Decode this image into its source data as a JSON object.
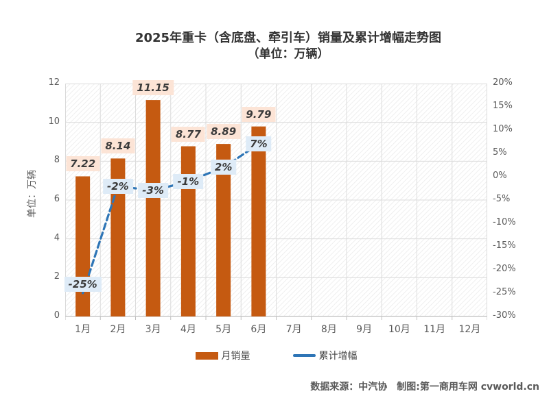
{
  "title": {
    "line1": "2025年重卡（含底盘、牵引车）销量及累计增幅走势图",
    "line2": "（单位：万辆）"
  },
  "y_axis": {
    "label": "单位：万辆",
    "ticks": [
      12,
      10,
      8,
      6,
      4,
      2,
      0
    ],
    "min": 0,
    "max": 12
  },
  "y2_axis": {
    "ticks": [
      "20%",
      "15%",
      "10%",
      "5%",
      "0%",
      "-5%",
      "-10%",
      "-15%",
      "-20%",
      "-25%",
      "-30%"
    ],
    "min": -30,
    "max": 20
  },
  "chart_data": {
    "type": "bar+line-combo",
    "title": "2025年重卡（含底盘、牵引车）销量及累计增幅走势图（单位：万辆）",
    "categories": [
      "1月",
      "2月",
      "3月",
      "4月",
      "5月",
      "6月",
      "7月",
      "8月",
      "9月",
      "10月",
      "11月",
      "12月"
    ],
    "series": [
      {
        "name": "月销量",
        "type": "bar",
        "axis": "left",
        "unit": "万辆",
        "values": [
          7.22,
          8.14,
          11.15,
          8.77,
          8.89,
          9.79,
          null,
          null,
          null,
          null,
          null,
          null
        ],
        "labels": [
          "7.22",
          "8.14",
          "11.15",
          "8.77",
          "8.89",
          "9.79"
        ]
      },
      {
        "name": "累计增幅",
        "type": "line",
        "axis": "right",
        "unit": "%",
        "values": [
          -25,
          -2,
          -3,
          -1,
          2,
          7,
          null,
          null,
          null,
          null,
          null,
          null
        ],
        "labels": [
          "-25%",
          "-2%",
          "-3%",
          "-1%",
          "2%",
          "7%"
        ]
      }
    ],
    "left_ylim": [
      0,
      12
    ],
    "right_ylim": [
      -30,
      20
    ],
    "grid": true,
    "legend_position": "bottom"
  },
  "legend": [
    {
      "label": "月销量",
      "type": "bar"
    },
    {
      "label": "累计增幅",
      "type": "line"
    }
  ],
  "footer": {
    "text": "数据来源：中汽协　制图:第一商用车网 cvworld.cn"
  },
  "colors": {
    "bar": "#C55A11",
    "line": "#2E75B6",
    "bar_label_bg": "#FCE4D6",
    "line_label_bg": "#DEEBF7",
    "grid": "#dcdcdc",
    "hatch": "#ebebeb",
    "axis_text": "#595959",
    "title_text": "#333333"
  }
}
